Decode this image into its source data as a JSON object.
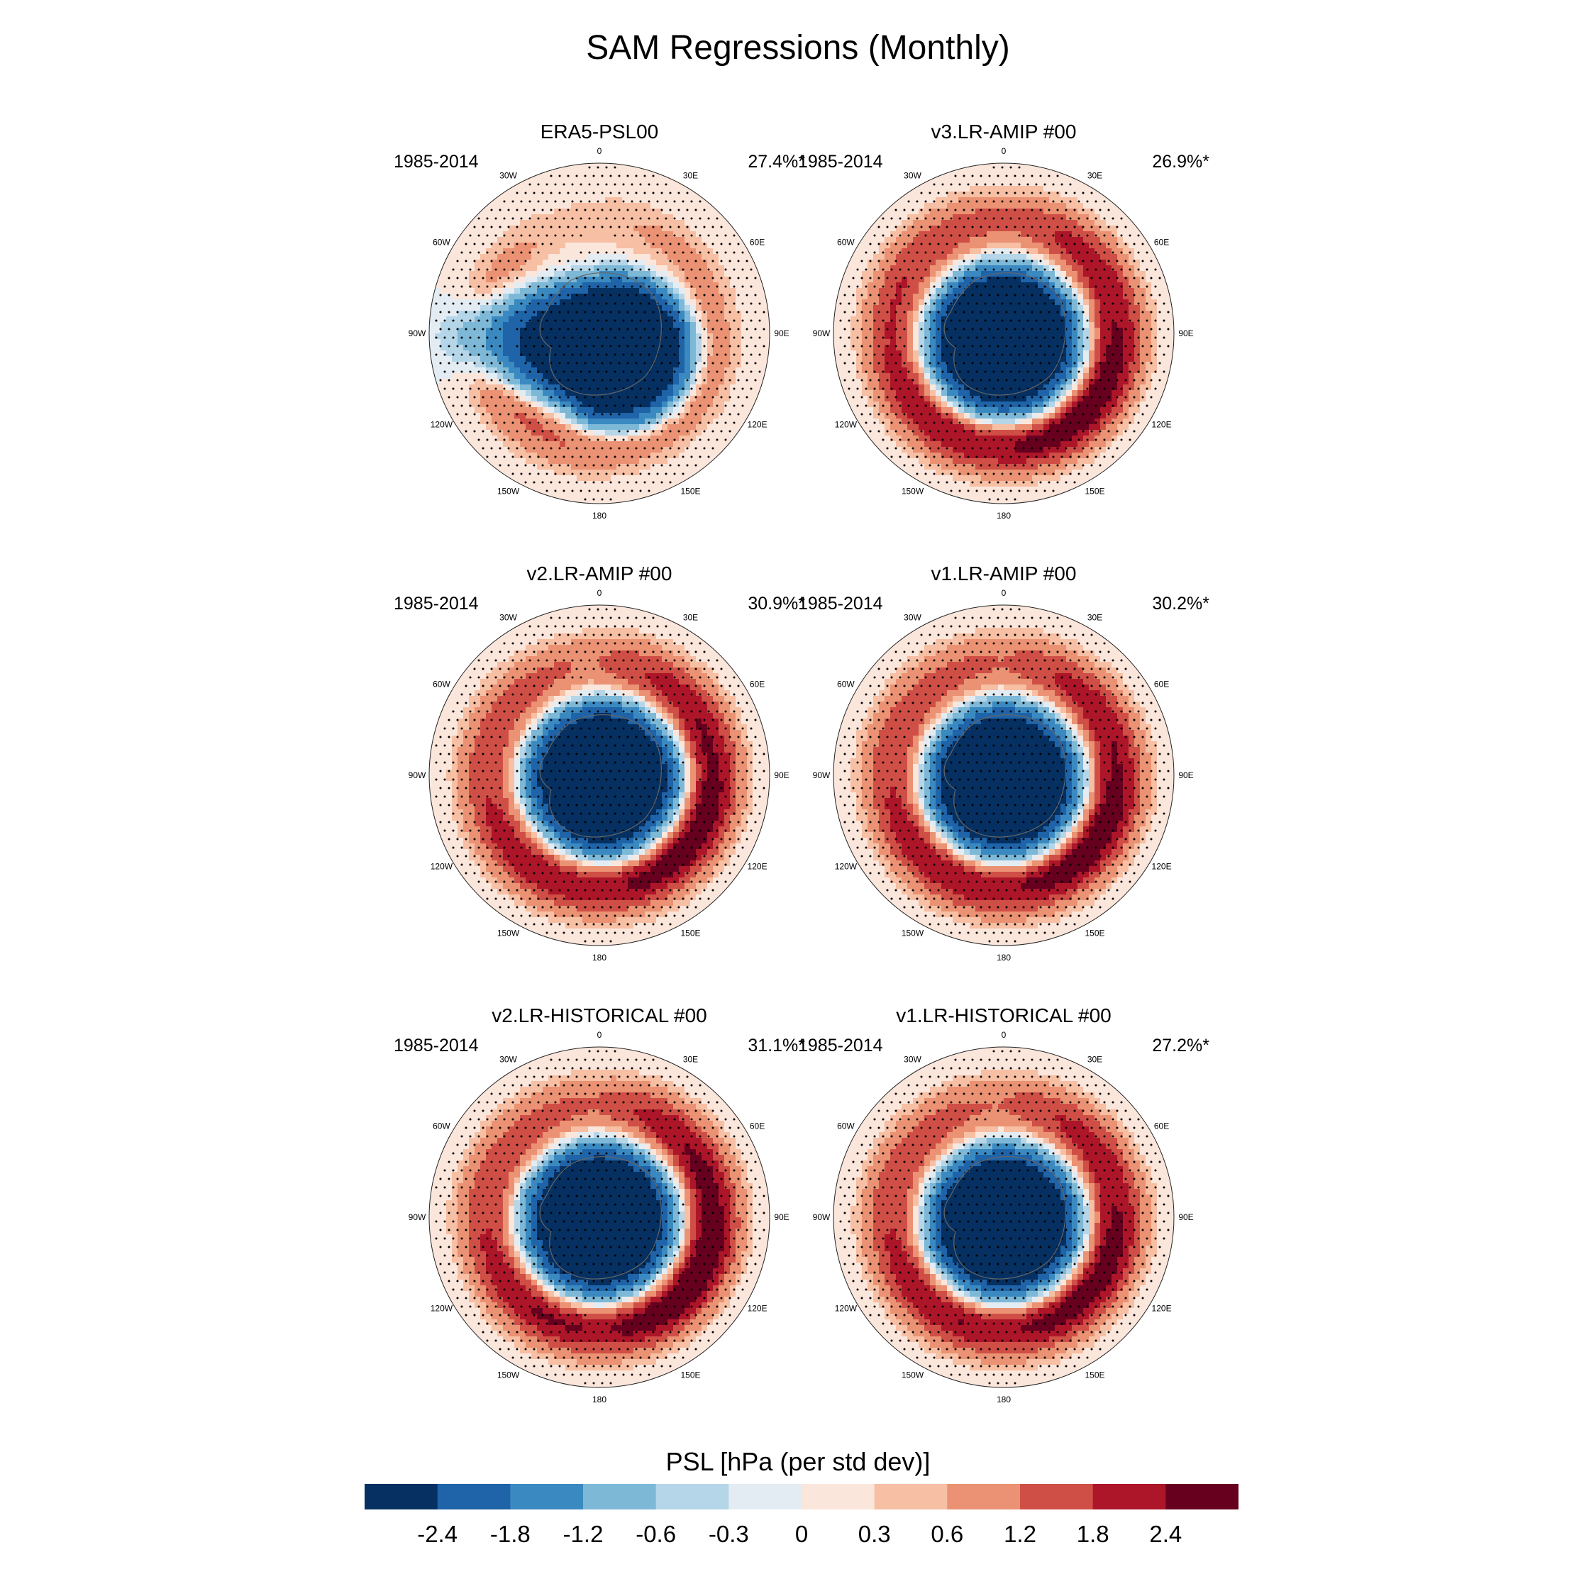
{
  "figure": {
    "title": "SAM Regressions (Monthly)"
  },
  "panels": [
    {
      "title": "ERA5-PSL00",
      "years": "1985-2014",
      "percent": "27.4%*",
      "params": {
        "a": 1.0,
        "ax": 0.1,
        "ay": 0.1,
        "b0": 0.45,
        "b1": 0.9,
        "b2": 0.6,
        "pa": 1.7,
        "pb": 1.2,
        "wide": 1
      }
    },
    {
      "title": "v3.LR-AMIP  #00",
      "years": "1985-2014",
      "percent": "26.9%*",
      "params": {
        "a": 1.0,
        "ax": 0.0,
        "ay": 0.04,
        "b0": 1.25,
        "b1": 2.3,
        "b2": 1.9,
        "pa": 1.6,
        "pb": 1.7,
        "wide": 0
      }
    },
    {
      "title": "v2.LR-AMIP  #00",
      "years": "1985-2014",
      "percent": "30.9%*",
      "params": {
        "a": 1.0,
        "ax": 0.02,
        "ay": 0.02,
        "b0": 1.1,
        "b1": 2.2,
        "b2": 2.4,
        "pa": 1.65,
        "pb": 1.5,
        "wide": 0
      }
    },
    {
      "title": "v1.LR-AMIP  #00",
      "years": "1985-2014",
      "percent": "30.2%*",
      "params": {
        "a": 1.0,
        "ax": 0.0,
        "ay": 0.03,
        "b0": 1.2,
        "b1": 2.2,
        "b2": 2.1,
        "pa": 1.6,
        "pb": 1.55,
        "wide": 0
      }
    },
    {
      "title": "v2.LR-HISTORICAL  #00",
      "years": "1985-2014",
      "percent": "31.1%*",
      "params": {
        "a": 1.0,
        "ax": 0.0,
        "ay": 0.02,
        "b0": 1.2,
        "b1": 2.3,
        "b2": 2.5,
        "pa": 1.65,
        "pb": 1.55,
        "wide": 0
      }
    },
    {
      "title": "v1.LR-HISTORICAL  #00",
      "years": "1985-2014",
      "percent": "27.2%*",
      "params": {
        "a": 1.0,
        "ax": 0.0,
        "ay": 0.03,
        "b0": 1.2,
        "b1": 2.1,
        "b2": 2.0,
        "pa": 1.6,
        "pb": 1.45,
        "wide": 0
      }
    }
  ],
  "longitude_labels": [
    "0",
    "30E",
    "60E",
    "90E",
    "120E",
    "150E",
    "180",
    "150W",
    "120W",
    "90W",
    "60W",
    "30W"
  ],
  "colorbar": {
    "title": "PSL [hPa (per std dev)]",
    "tick_labels": [
      "-2.4",
      "-1.8",
      "-1.2",
      "-0.6",
      "-0.3",
      "0",
      "0.3",
      "0.6",
      "1.2",
      "1.8",
      "2.4"
    ],
    "levels": [
      -2.4,
      -1.8,
      -1.2,
      -0.6,
      -0.3,
      0,
      0.3,
      0.6,
      1.2,
      1.8,
      2.4
    ],
    "colors": [
      "#053061",
      "#1f63a8",
      "#3a8ac1",
      "#7db8d7",
      "#b5d6e8",
      "#e3ecf3",
      "#fbe6dc",
      "#f7bfa3",
      "#ea9273",
      "#cf4f46",
      "#ad1529",
      "#67001f"
    ]
  }
}
